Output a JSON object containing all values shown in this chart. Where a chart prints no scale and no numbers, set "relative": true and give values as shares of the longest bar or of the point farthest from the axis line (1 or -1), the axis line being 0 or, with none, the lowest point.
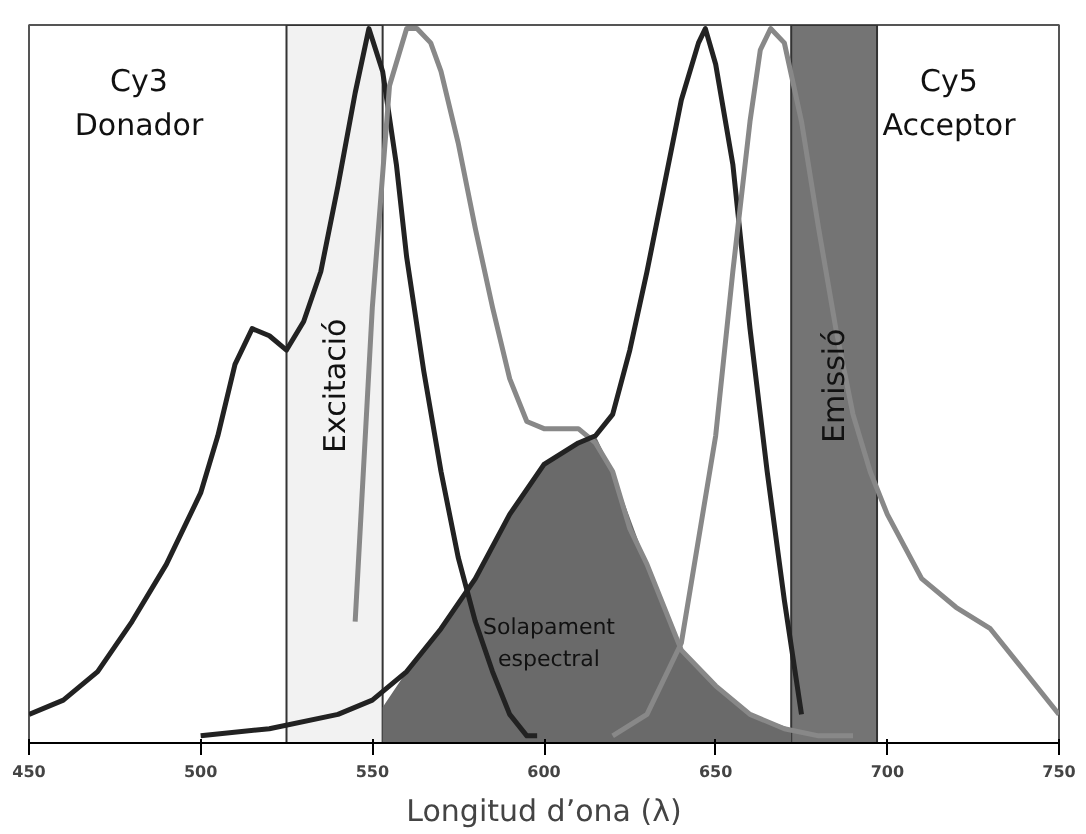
{
  "chart_data": {
    "type": "line",
    "xlabel": "Longitud d’ona (λ)",
    "relative": true,
    "xlim": [
      450,
      750
    ],
    "xticks": [
      450,
      500,
      550,
      600,
      650,
      700,
      750
    ],
    "grid": false,
    "series": [
      {
        "type": "area",
        "color": "#6a6a6a",
        "x": [
          553,
          560,
          570,
          580,
          590,
          600,
          610,
          615,
          620,
          630,
          640,
          650,
          660,
          672
        ],
        "values": [
          0.05,
          0.1,
          0.16,
          0.23,
          0.32,
          0.39,
          0.42,
          0.43,
          0.38,
          0.25,
          0.13,
          0.08,
          0.04,
          0.02
        ]
      },
      {
        "color": "#222222",
        "x": [
          450,
          460,
          470,
          480,
          490,
          500,
          505,
          510,
          515,
          520,
          525,
          530,
          535,
          540,
          545,
          549,
          553,
          557,
          560,
          565,
          570,
          575,
          580,
          585,
          590,
          595,
          598
        ],
        "values": [
          0.04,
          0.06,
          0.1,
          0.17,
          0.25,
          0.35,
          0.43,
          0.53,
          0.58,
          0.57,
          0.55,
          0.59,
          0.66,
          0.78,
          0.91,
          1.0,
          0.94,
          0.81,
          0.68,
          0.52,
          0.38,
          0.26,
          0.17,
          0.1,
          0.04,
          0.01,
          0.01
        ]
      },
      {
        "color": "#888888",
        "x": [
          545,
          550,
          555,
          560,
          563,
          567,
          570,
          575,
          580,
          585,
          590,
          595,
          600,
          605,
          610,
          615,
          620,
          625,
          630,
          640,
          650,
          660,
          670,
          680,
          690
        ],
        "values": [
          0.17,
          0.61,
          0.92,
          1.0,
          1.0,
          0.98,
          0.94,
          0.84,
          0.72,
          0.61,
          0.51,
          0.45,
          0.44,
          0.44,
          0.44,
          0.42,
          0.38,
          0.3,
          0.25,
          0.13,
          0.08,
          0.04,
          0.02,
          0.01,
          0.01
        ]
      },
      {
        "color": "#222222",
        "x": [
          500,
          520,
          540,
          550,
          560,
          570,
          580,
          590,
          600,
          610,
          615,
          620,
          625,
          630,
          635,
          640,
          645,
          647,
          650,
          655,
          660,
          665,
          670,
          675
        ],
        "values": [
          0.01,
          0.02,
          0.04,
          0.06,
          0.1,
          0.16,
          0.23,
          0.32,
          0.39,
          0.42,
          0.43,
          0.46,
          0.55,
          0.66,
          0.78,
          0.9,
          0.98,
          1.0,
          0.95,
          0.81,
          0.58,
          0.38,
          0.2,
          0.04
        ]
      },
      {
        "color": "#888888",
        "x": [
          620,
          630,
          640,
          650,
          655,
          660,
          663,
          666,
          670,
          675,
          680,
          685,
          690,
          695,
          700,
          710,
          720,
          730,
          740,
          750
        ],
        "values": [
          0.01,
          0.04,
          0.14,
          0.43,
          0.66,
          0.87,
          0.97,
          1.0,
          0.98,
          0.87,
          0.72,
          0.58,
          0.46,
          0.38,
          0.32,
          0.23,
          0.19,
          0.16,
          0.1,
          0.04
        ]
      }
    ],
    "bands": [
      {
        "axis": "x",
        "from": 525,
        "to": 553,
        "label": "Excitació",
        "color": "#f2f2f2"
      },
      {
        "axis": "x",
        "from": 672,
        "to": 697,
        "label": "Emissió",
        "color": "#747474"
      }
    ],
    "annotations": [
      "Cy3\nDonador",
      "Cy5\nAcceptor",
      "Solapament\nespectral"
    ]
  }
}
